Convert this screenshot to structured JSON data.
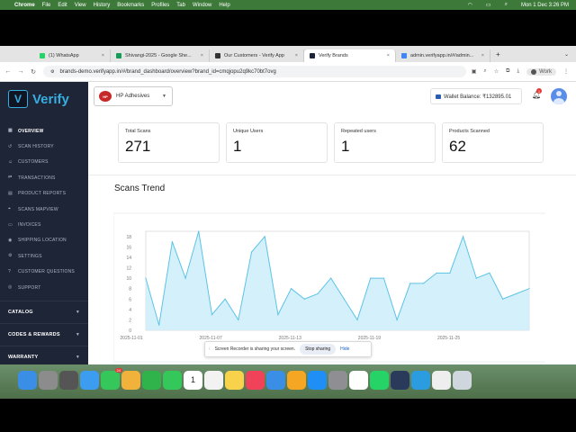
{
  "menubar": {
    "app": "Chrome",
    "items": [
      "File",
      "Edit",
      "View",
      "History",
      "Bookmarks",
      "Profiles",
      "Tab",
      "Window",
      "Help"
    ],
    "datetime": "Mon 1 Dec  3:26 PM"
  },
  "tabs": [
    {
      "label": "(1) WhatsApp",
      "color": "#25d366"
    },
    {
      "label": "Shivangi-2025 - Google She...",
      "color": "#0f9d58"
    },
    {
      "label": "Our Customers - Verify App",
      "color": "#333333"
    },
    {
      "label": "Verify Brands",
      "color": "#1e2537",
      "active": true
    },
    {
      "label": "admin.verifyapp.in/#/admin...",
      "color": "#4285f4"
    }
  ],
  "address": {
    "url": "brands-demo.verifyapp.in/#/brand_dashboard/overview?brand_id=cmqjopu2q9kc70bt7ovg",
    "profile": "Work"
  },
  "sidebar": {
    "logo": "Verify",
    "items": [
      {
        "label": "Overview",
        "icon": "dashboard-icon",
        "active": true
      },
      {
        "label": "Scan History",
        "icon": "history-icon"
      },
      {
        "label": "Customers",
        "icon": "users-icon"
      },
      {
        "label": "Transactions",
        "icon": "transactions-icon"
      },
      {
        "label": "Product Reports",
        "icon": "report-icon"
      },
      {
        "label": "Scans Mapview",
        "icon": "map-icon"
      },
      {
        "label": "Invoices",
        "icon": "invoice-icon"
      },
      {
        "label": "Shipping Location",
        "icon": "location-icon"
      },
      {
        "label": "Settings",
        "icon": "gear-icon"
      },
      {
        "label": "Customer Questions",
        "icon": "question-icon"
      },
      {
        "label": "Support",
        "icon": "support-icon"
      }
    ],
    "sections": [
      "CATALOG",
      "CODES & REWARDS",
      "WARRANTY"
    ]
  },
  "header": {
    "brand": "HP Adhesives",
    "brand_logo_text": "HP",
    "wallet": "Wallet Balance: ₹132895.01",
    "notifications": "1"
  },
  "stats": [
    {
      "label": "Total Scans",
      "value": "271"
    },
    {
      "label": "Unique Users",
      "value": "1"
    },
    {
      "label": "Repeated users",
      "value": "1"
    },
    {
      "label": "Products Scanned",
      "value": "62"
    }
  ],
  "trend": {
    "title": "Scans Trend"
  },
  "chart_data": {
    "type": "area",
    "title": "Scans Trend",
    "x_ticks": [
      "2025-11-01",
      "2025-11-07",
      "2025-11-13",
      "2025-11-19",
      "2025-11-25"
    ],
    "y_ticks": [
      0,
      2,
      4,
      6,
      8,
      10,
      12,
      14,
      16,
      18
    ],
    "ylim": [
      0,
      19
    ],
    "values": [
      10,
      1,
      17,
      10,
      19,
      3,
      6,
      2,
      15,
      18,
      3,
      8,
      6,
      7,
      10,
      6,
      2,
      10,
      10,
      2,
      9,
      9,
      11,
      11,
      18,
      10,
      11,
      6,
      7,
      8
    ],
    "colors": {
      "line": "#5cc3e6",
      "fill": "#cdeefa"
    }
  },
  "notification": {
    "text": "Screen Recorder is sharing your screen.",
    "stop": "Stop sharing",
    "hide": "Hide"
  },
  "dock": [
    {
      "name": "finder-icon",
      "color": "#3a8ee6"
    },
    {
      "name": "launchpad-icon",
      "color": "#8c8c8c"
    },
    {
      "name": "screenshot-icon",
      "color": "#555555"
    },
    {
      "name": "safari-icon",
      "color": "#3b9cf0"
    },
    {
      "name": "messages-icon",
      "color": "#35c759",
      "badge": "24"
    },
    {
      "name": "photos-icon",
      "color": "#f0b23a"
    },
    {
      "name": "facetime-icon",
      "color": "#2fb34a"
    },
    {
      "name": "phone-icon",
      "color": "#34c759"
    },
    {
      "name": "calendar-icon",
      "color": "#ffffff",
      "label": "1"
    },
    {
      "name": "reminders-icon",
      "color": "#f2f2f2"
    },
    {
      "name": "notes-icon",
      "color": "#f7d24a"
    },
    {
      "name": "music-icon",
      "color": "#f0435a"
    },
    {
      "name": "keynote-icon",
      "color": "#3a8ee6"
    },
    {
      "name": "pages-icon",
      "color": "#f5a623"
    },
    {
      "name": "appstore-icon",
      "color": "#1f8ff5"
    },
    {
      "name": "settings-icon",
      "color": "#8e8e93"
    },
    {
      "name": "chrome-icon",
      "color": "#ffffff"
    },
    {
      "name": "whatsapp-icon",
      "color": "#25d366"
    },
    {
      "name": "screen-recorder-icon",
      "color": "#2a3a5a"
    },
    {
      "name": "quickshare-icon",
      "color": "#2b9ce0"
    },
    {
      "name": "document-icon",
      "color": "#eeeeee"
    },
    {
      "name": "trash-icon",
      "color": "#cfd6dd"
    }
  ]
}
